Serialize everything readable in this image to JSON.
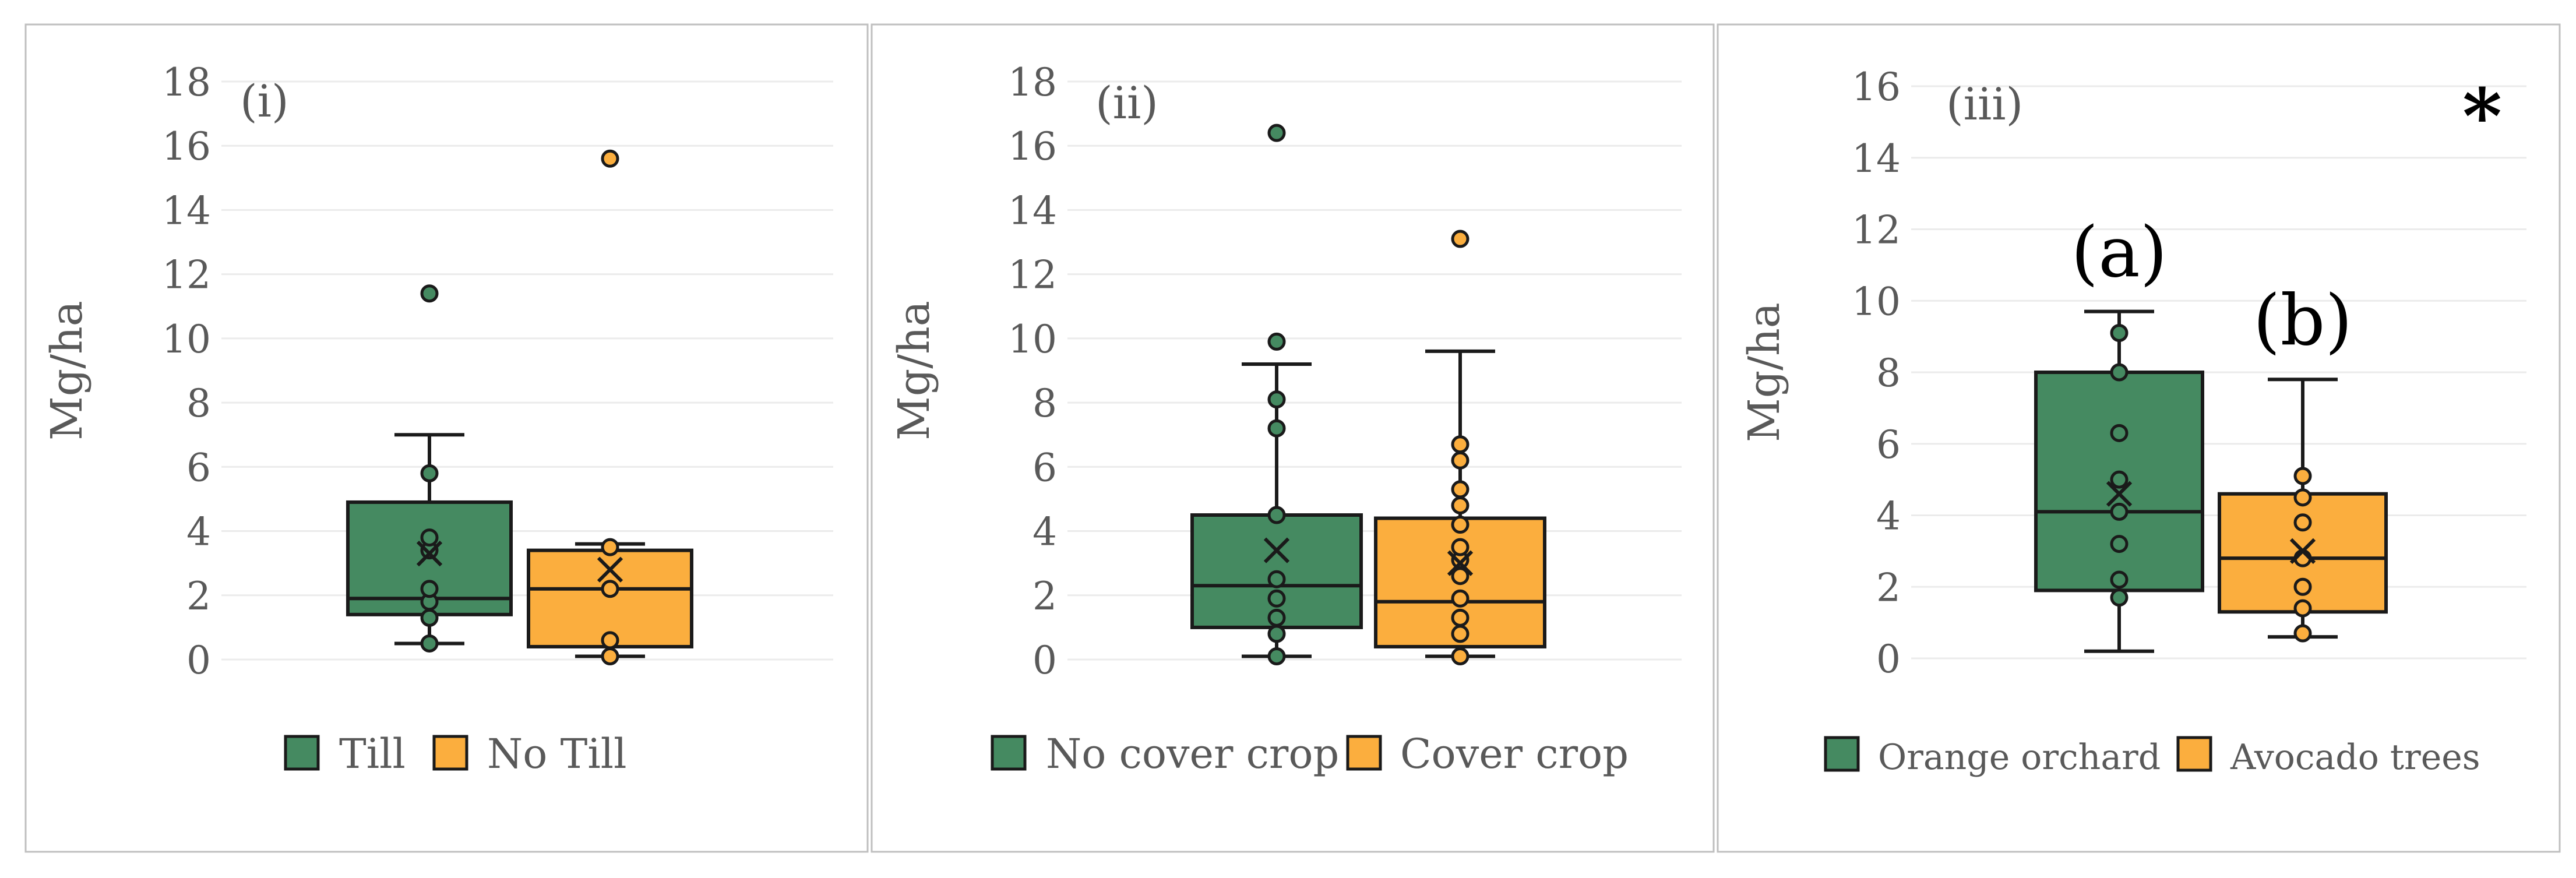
{
  "colors": {
    "green": "#458A61",
    "orange": "#FBAE3E",
    "stroke": "#1a1a1a",
    "text": "#595959",
    "grid": "#ebebeb",
    "border": "#bfbfbf"
  },
  "chart_data": [
    {
      "type": "box",
      "panel_label": "(i)",
      "ylabel": "Mg/ha",
      "ylim": [
        0,
        18
      ],
      "yticks": [
        0,
        2,
        4,
        6,
        8,
        10,
        12,
        14,
        16,
        18
      ],
      "grid": true,
      "legend_position": "bottom",
      "significance_marker": "",
      "groups": [
        {
          "name": "Till",
          "color": "#458A61",
          "whisker_low": 0.5,
          "q1": 1.4,
          "median": 1.9,
          "q3": 4.9,
          "whisker_high": 7.0,
          "mean": 3.3,
          "points": [
            0.5,
            1.3,
            1.8,
            2.2,
            3.4,
            3.8,
            5.8,
            11.4
          ],
          "group_label": ""
        },
        {
          "name": "No Till",
          "color": "#FBAE3E",
          "whisker_low": 0.1,
          "q1": 0.4,
          "median": 2.2,
          "q3": 3.4,
          "whisker_high": 3.6,
          "mean": 2.8,
          "points": [
            0.1,
            0.6,
            2.2,
            3.5,
            15.6
          ],
          "group_label": ""
        }
      ]
    },
    {
      "type": "box",
      "panel_label": "(ii)",
      "ylabel": "Mg/ha",
      "ylim": [
        0,
        18
      ],
      "yticks": [
        0,
        2,
        4,
        6,
        8,
        10,
        12,
        14,
        16,
        18
      ],
      "grid": true,
      "legend_position": "bottom",
      "significance_marker": "",
      "groups": [
        {
          "name": "No cover crop",
          "color": "#458A61",
          "whisker_low": 0.1,
          "q1": 1.0,
          "median": 2.3,
          "q3": 4.5,
          "whisker_high": 9.2,
          "mean": 3.4,
          "points": [
            0.1,
            0.8,
            1.3,
            1.9,
            2.5,
            4.5,
            7.2,
            8.1,
            9.9,
            16.4
          ],
          "group_label": ""
        },
        {
          "name": "Cover crop",
          "color": "#FBAE3E",
          "whisker_low": 0.1,
          "q1": 0.4,
          "median": 1.8,
          "q3": 4.4,
          "whisker_high": 9.6,
          "mean": 3.0,
          "points": [
            0.1,
            0.8,
            1.3,
            1.9,
            2.6,
            3.1,
            3.5,
            4.2,
            4.8,
            5.3,
            6.2,
            6.7,
            13.1
          ],
          "group_label": ""
        }
      ]
    },
    {
      "type": "box",
      "panel_label": "(iii)",
      "ylabel": "Mg/ha",
      "ylim": [
        0,
        16
      ],
      "yticks": [
        0,
        2,
        4,
        6,
        8,
        10,
        12,
        14,
        16
      ],
      "grid": true,
      "legend_position": "bottom",
      "significance_marker": "*",
      "groups": [
        {
          "name": "Orange orchard",
          "color": "#458A61",
          "whisker_low": 0.2,
          "q1": 1.9,
          "median": 4.1,
          "q3": 8.0,
          "whisker_high": 9.7,
          "mean": 4.6,
          "points": [
            1.7,
            2.2,
            3.2,
            4.1,
            5.0,
            6.3,
            8.0,
            9.1
          ],
          "group_label": "(a)"
        },
        {
          "name": "Avocado trees",
          "color": "#FBAE3E",
          "whisker_low": 0.6,
          "q1": 1.3,
          "median": 2.8,
          "q3": 4.6,
          "whisker_high": 7.8,
          "mean": 3.0,
          "points": [
            0.7,
            1.4,
            2.0,
            2.8,
            3.8,
            4.5,
            5.1
          ],
          "group_label": "(b)"
        }
      ]
    }
  ]
}
